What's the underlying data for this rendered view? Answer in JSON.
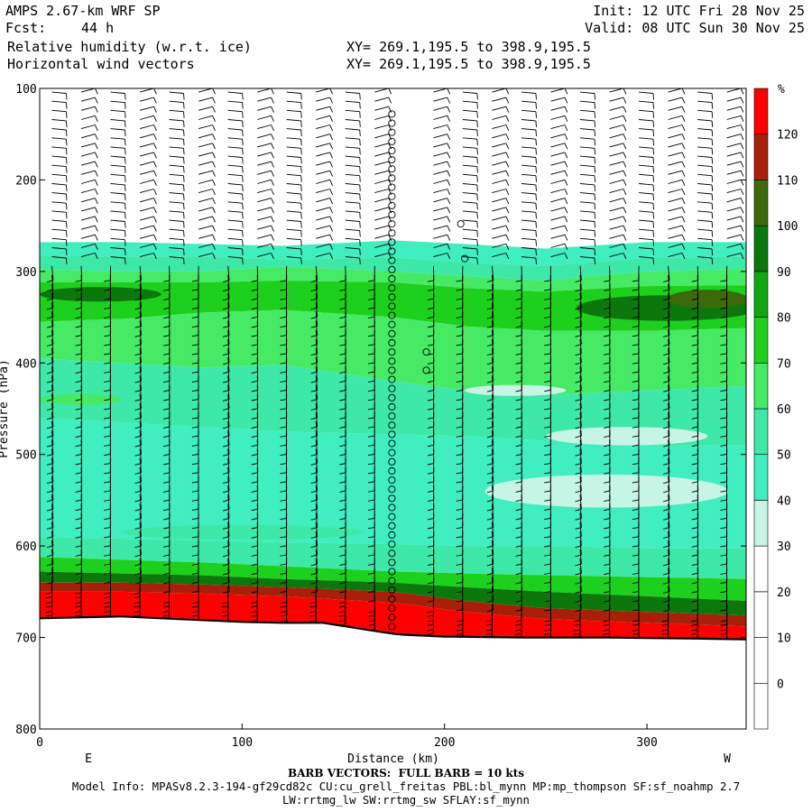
{
  "header": {
    "title": "AMPS 2.67-km WRF SP",
    "fcst_label": "Fcst:",
    "fcst_value": "44 h",
    "field1": "Relative humidity (w.r.t. ice)",
    "field2": "Horizontal wind vectors",
    "xy1": "XY= 269.1,195.5 to 398.9,195.5",
    "xy2": "XY= 269.1,195.5 to 398.9,195.5",
    "init": "Init: 12 UTC Fri 28 Nov 25",
    "valid": "Valid: 08 UTC Sun 30 Nov 25"
  },
  "footer": {
    "barb_note": "BARB VECTORS:  FULL BARB = 10 kts",
    "model_info": "Model Info: MPASv8.2.3-194-gf29cd82c CU:cu_grell_freitas PBL:bl_mynn MP:mp_thompson SF:sf_noahmp 2.7",
    "model_info2": "LW:rrtmg_lw SW:rrtmg_sw SFLAY:sf_mynn"
  },
  "colors": {
    "bands": [
      "#ffffff",
      "#ffffff",
      "#ffffff",
      "#ffffff",
      "#c6f5e6",
      "#40eec0",
      "#3ee8a8",
      "#46ea64",
      "#1ed01e",
      "#0ea80e",
      "#0c780c",
      "#3c6a0a",
      "#a8200a",
      "#ff0000"
    ],
    "terrain_line": "#000000"
  },
  "chart_data": {
    "type": "cross-section",
    "xlabel": "Distance (km)",
    "ylabel": "Pressure (hPa)",
    "xlim": [
      0,
      349
    ],
    "ylim": [
      800,
      100
    ],
    "x_ticks": [
      0,
      100,
      200,
      300
    ],
    "y_ticks": [
      100,
      200,
      300,
      400,
      500,
      600,
      700,
      800
    ],
    "end_labels": {
      "left": "E",
      "right": "W"
    },
    "colorbar": {
      "unit": "%",
      "levels": [
        0,
        10,
        20,
        30,
        40,
        50,
        60,
        70,
        80,
        90,
        100,
        110,
        120
      ]
    },
    "surface_pressure": {
      "x": [
        0,
        20,
        40,
        60,
        80,
        100,
        120,
        140,
        160,
        175,
        180,
        200,
        240,
        280,
        320,
        349
      ],
      "p": [
        679,
        678,
        677,
        679,
        681,
        683,
        684,
        684,
        691,
        696,
        697,
        699,
        700,
        700,
        701,
        702
      ]
    },
    "rh_layers": [
      {
        "top": [
          268,
          268,
          270,
          272,
          266,
          270,
          275,
          268,
          268
        ],
        "bottom": [
          282,
          284,
          284,
          287,
          285,
          290,
          294,
          285,
          284
        ],
        "rh": 45
      },
      {
        "top": [
          282,
          284,
          284,
          287,
          285,
          290,
          294,
          285,
          284
        ],
        "bottom": [
          298,
          300,
          300,
          295,
          300,
          305,
          310,
          300,
          298
        ],
        "rh": 55
      },
      {
        "top": [
          298,
          300,
          300,
          295,
          300,
          305,
          310,
          300,
          298
        ],
        "bottom": [
          312,
          312,
          312,
          310,
          312,
          318,
          322,
          316,
          315
        ],
        "rh": 65
      },
      {
        "top": [
          312,
          312,
          312,
          310,
          312,
          318,
          322,
          316,
          315
        ],
        "bottom": [
          355,
          352,
          345,
          342,
          350,
          360,
          365,
          365,
          362
        ],
        "rh": 75
      },
      {
        "top": [
          355,
          352,
          345,
          342,
          350,
          360,
          365,
          365,
          362
        ],
        "bottom": [
          395,
          400,
          405,
          402,
          420,
          430,
          435,
          430,
          425
        ],
        "rh": 68
      },
      {
        "top": [
          395,
          400,
          405,
          402,
          420,
          430,
          435,
          430,
          425
        ],
        "bottom": [
          460,
          465,
          470,
          475,
          478,
          480,
          485,
          490,
          490
        ],
        "rh": 55
      },
      {
        "top": [
          460,
          465,
          470,
          475,
          478,
          480,
          485,
          490,
          490
        ],
        "bottom": [
          590,
          592,
          594,
          596,
          598,
          600,
          600,
          602,
          602
        ],
        "rh": 45
      },
      {
        "top": [
          590,
          592,
          594,
          596,
          598,
          600,
          600,
          602,
          602
        ],
        "bottom": [
          612,
          615,
          618,
          622,
          628,
          630,
          632,
          634,
          636
        ],
        "rh": 55
      },
      {
        "top": [
          612,
          615,
          618,
          622,
          628,
          630,
          632,
          634,
          636
        ],
        "bottom": [
          628,
          630,
          632,
          636,
          640,
          645,
          650,
          655,
          660
        ],
        "rh": 75
      },
      {
        "top": [
          628,
          630,
          632,
          636,
          640,
          645,
          650,
          655,
          660
        ],
        "bottom": [
          640,
          640,
          642,
          645,
          650,
          660,
          668,
          672,
          676
        ],
        "rh": 95
      },
      {
        "top": [
          640,
          640,
          642,
          645,
          650,
          660,
          668,
          672,
          676
        ],
        "bottom": [
          650,
          650,
          652,
          655,
          662,
          672,
          680,
          684,
          688
        ],
        "rh": 115
      },
      {
        "top": [
          650,
          650,
          652,
          655,
          662,
          672,
          680,
          684,
          688
        ],
        "bottom": [
          800,
          800,
          800,
          800,
          800,
          800,
          800,
          800,
          800
        ],
        "rh": 125
      }
    ],
    "rh_layer_x": [
      0,
      40,
      80,
      120,
      175,
      210,
      250,
      300,
      349
    ],
    "rh_patches": [
      {
        "cx": 30,
        "cy": 325,
        "rx": 30,
        "ry": 8,
        "rh": 95
      },
      {
        "cx": 310,
        "cy": 340,
        "rx": 45,
        "ry": 14,
        "rh": 95
      },
      {
        "cx": 330,
        "cy": 330,
        "rx": 20,
        "ry": 10,
        "rh": 105
      },
      {
        "cx": 235,
        "cy": 430,
        "rx": 25,
        "ry": 6,
        "rh": 35
      },
      {
        "cx": 290,
        "cy": 480,
        "rx": 40,
        "ry": 10,
        "rh": 35
      },
      {
        "cx": 280,
        "cy": 540,
        "rx": 60,
        "ry": 18,
        "rh": 35
      },
      {
        "cx": 20,
        "cy": 440,
        "rx": 20,
        "ry": 6,
        "rh": 65
      },
      {
        "cx": 100,
        "cy": 585,
        "rx": 60,
        "ry": 8,
        "rh": 55
      }
    ],
    "calm_column_x": 174,
    "calm_extra": [
      {
        "x": 208,
        "p": 248
      },
      {
        "x": 210,
        "p": 286
      },
      {
        "x": 191,
        "p": 388
      },
      {
        "x": 191,
        "p": 408
      }
    ]
  }
}
